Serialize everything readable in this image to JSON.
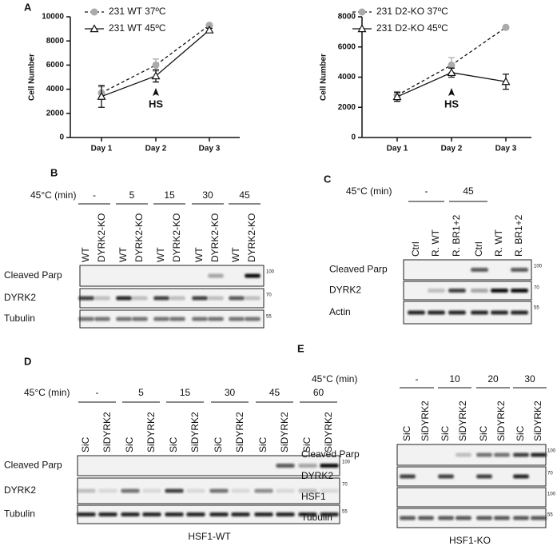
{
  "chart_data": [
    {
      "type": "line",
      "panel": "A",
      "y_label": "Cell Number",
      "categories": [
        "Day 1",
        "Day 2",
        "Day 3"
      ],
      "ylim": [
        0,
        10000
      ],
      "yticks": [
        0,
        2000,
        4000,
        6000,
        8000,
        10000
      ],
      "annotation": {
        "text": "HS",
        "x": "Day 2"
      },
      "series": [
        {
          "name": "231 WT 37ºC",
          "color": "#aaaaaa",
          "marker": "circle",
          "dash": true,
          "values": [
            3700,
            6000,
            9300
          ],
          "errors": [
            500,
            500,
            100
          ]
        },
        {
          "name": "231 WT 45ºC",
          "color": "#111111",
          "marker": "triangle",
          "dash": false,
          "values": [
            3400,
            5100,
            8900
          ],
          "errors": [
            900,
            500,
            150
          ]
        }
      ]
    },
    {
      "type": "line",
      "y_label": "Cell Number",
      "categories": [
        "Day 1",
        "Day 2",
        "Day 3"
      ],
      "ylim": [
        0,
        8000
      ],
      "yticks": [
        0,
        2000,
        4000,
        6000,
        8000
      ],
      "annotation": {
        "text": "HS",
        "x": "Day 2"
      },
      "series": [
        {
          "name": "231 D2-KO 37ºC",
          "color": "#aaaaaa",
          "marker": "circle",
          "dash": true,
          "values": [
            2800,
            4800,
            7300
          ],
          "errors": [
            250,
            500,
            100
          ]
        },
        {
          "name": "231 D2-KO 45ºC",
          "color": "#111111",
          "marker": "triangle",
          "dash": false,
          "values": [
            2700,
            4300,
            3700
          ],
          "errors": [
            300,
            300,
            500
          ]
        }
      ]
    }
  ],
  "blots": [
    {
      "panel": "B",
      "treatment": "45°C (min)",
      "groups": [
        "-",
        "5",
        "15",
        "30",
        "45"
      ],
      "lanes": [
        "WT",
        "DYRK2-KO",
        "WT",
        "DYRK2-KO",
        "WT",
        "DYRK2-KO",
        "WT",
        "DYRK2-KO",
        "WT",
        "DYRK2-KO"
      ],
      "rows": [
        {
          "name": "Cleaved Parp",
          "marker": 100
        },
        {
          "name": "DYRK2",
          "marker": 70
        },
        {
          "name": "Tubulin",
          "marker": 55
        }
      ]
    },
    {
      "panel": "C",
      "treatment": "45°C (min)",
      "groups": [
        "-",
        "45"
      ],
      "lanes": [
        "Ctrl",
        "R. WT",
        "R. BR1+2",
        "Ctrl",
        "R. WT",
        "R. BR1+2"
      ],
      "rows": [
        {
          "name": "Cleaved Parp",
          "marker": 100
        },
        {
          "name": "DYRK2",
          "marker": 70
        },
        {
          "name": "Actin",
          "marker": 55
        }
      ]
    },
    {
      "panel": "D",
      "treatment": "45°C (min)",
      "groups": [
        "-",
        "5",
        "15",
        "30",
        "45",
        "60"
      ],
      "lanes": [
        "SiC",
        "SiDYRK2",
        "SiC",
        "SiDYRK2",
        "SiC",
        "SiDYRK2",
        "SiC",
        "SiDYRK2",
        "SiC",
        "SiDYRK2",
        "SiC",
        "SiDYRK2"
      ],
      "rows": [
        {
          "name": "Cleaved Parp",
          "marker": 100
        },
        {
          "name": "DYRK2",
          "marker": 70
        },
        {
          "name": "Tubulin",
          "marker": 55
        }
      ],
      "caption": "HSF1-WT"
    },
    {
      "panel": "E",
      "treatment": "45°C (min)",
      "groups": [
        "-",
        "10",
        "20",
        "30"
      ],
      "lanes": [
        "SiC",
        "SiDYRK2",
        "SiC",
        "SiDYRK2",
        "SiC",
        "SiDYRK2",
        "SiC",
        "SiDYRK2"
      ],
      "rows": [
        {
          "name": "Cleaved Parp",
          "marker": 100
        },
        {
          "name": "DYRK2",
          "marker": 70
        },
        {
          "name": "HSF1",
          "marker": 100
        },
        {
          "name": "Tubulin",
          "marker": 55
        }
      ],
      "caption": "HSF1-KO"
    }
  ]
}
